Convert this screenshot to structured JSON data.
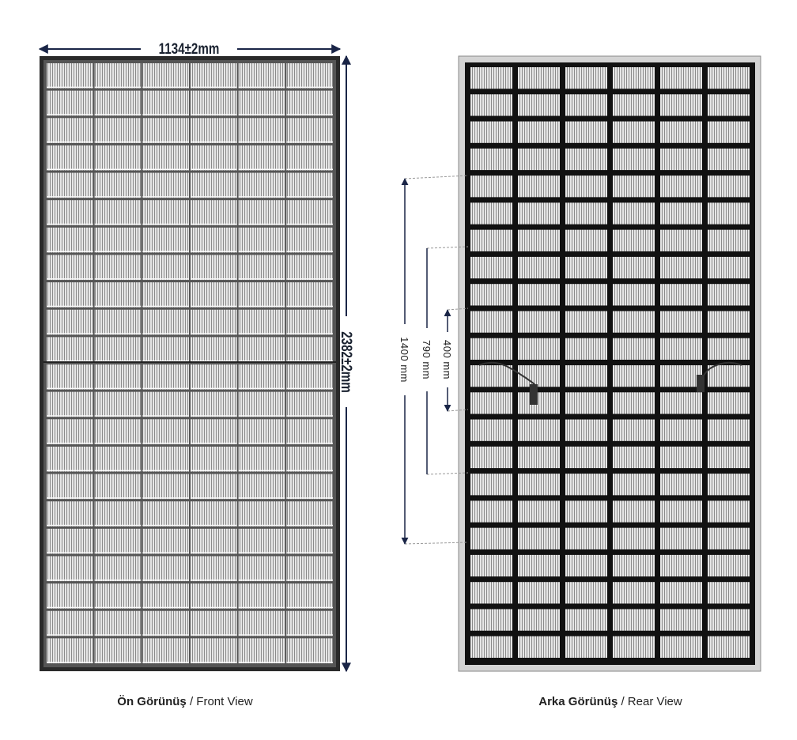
{
  "front": {
    "width_label": "1134±2mm",
    "height_label": "2382±2mm",
    "caption_bold": "Ön Görünüş",
    "caption": "/ Front View"
  },
  "rear": {
    "dimensions": [
      "1400 mm",
      "790 mm",
      "400 mm"
    ],
    "caption_bold": "Arka Görünüş",
    "caption": "/ Rear View"
  }
}
